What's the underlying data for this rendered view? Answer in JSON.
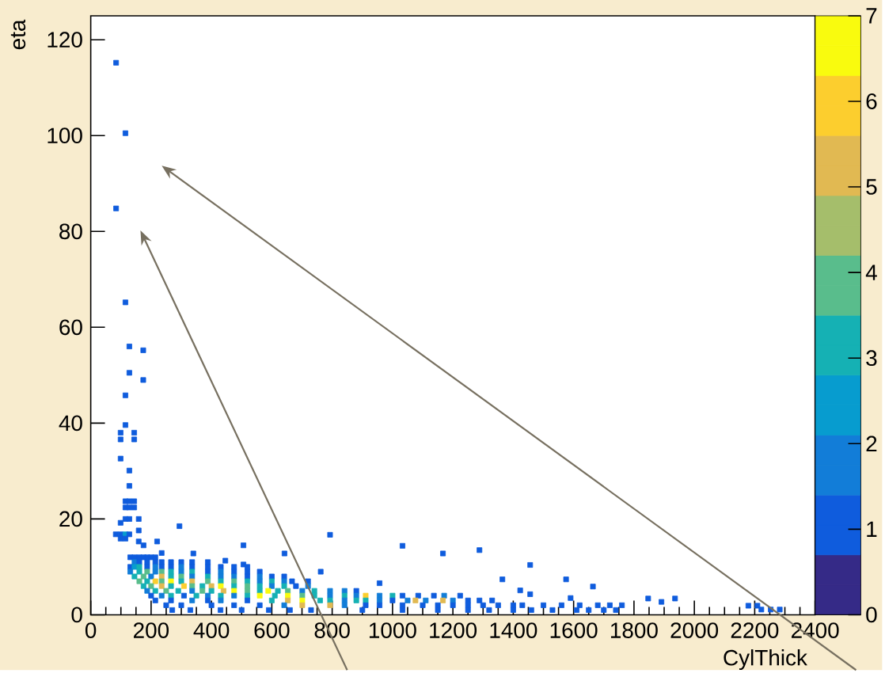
{
  "chart_data": {
    "type": "scatter",
    "xlabel": "CylThick",
    "ylabel": "eta",
    "xlim": [
      0,
      2400
    ],
    "xticks": [
      0,
      200,
      400,
      600,
      800,
      1000,
      1200,
      1400,
      1600,
      1800,
      2000,
      2200,
      2400
    ],
    "ylim": [
      0,
      125
    ],
    "yticks": [
      0,
      20,
      40,
      60,
      80,
      100,
      120
    ],
    "clim": [
      0,
      7
    ],
    "cticks": [
      0,
      1,
      2,
      3,
      4,
      5,
      6,
      7
    ],
    "marker": "square",
    "x": [
      84,
      115,
      84,
      115,
      128,
      174,
      128,
      174,
      115,
      115,
      99,
      144,
      99,
      144,
      99,
      128,
      128,
      115,
      128,
      144,
      115,
      128,
      144,
      115,
      128,
      159,
      99,
      294,
      159,
      83,
      99,
      115,
      128,
      99,
      115,
      159,
      220,
      175,
      506,
      235,
      340,
      642,
      446,
      506,
      793,
      1033,
      1167,
      1288,
      762,
      1456,
      1364,
      957,
      1423,
      1456,
      1575,
      1664,
      1590,
      1847,
      1891,
      1936,
      2179,
      2209,
      2222,
      2253,
      2283,
      131,
      145,
      161,
      175,
      187,
      200,
      214,
      145,
      161,
      187,
      214,
      235,
      266,
      300,
      336,
      388,
      131,
      145,
      161,
      187,
      214,
      235,
      266,
      300,
      336,
      388,
      431,
      475,
      519,
      131,
      161,
      187,
      214,
      235,
      266,
      300,
      336,
      388,
      431,
      475,
      519,
      560,
      145,
      175,
      200,
      235,
      266,
      300,
      336,
      388,
      431,
      475,
      519,
      560,
      600,
      641,
      161,
      187,
      214,
      235,
      266,
      300,
      336,
      388,
      431,
      475,
      519,
      560,
      600,
      641,
      667,
      720,
      175,
      200,
      235,
      266,
      309,
      336,
      370,
      400,
      431,
      475,
      519,
      560,
      600,
      641,
      680,
      720,
      187,
      214,
      250,
      290,
      336,
      370,
      400,
      440,
      475,
      519,
      560,
      588,
      620,
      653,
      701,
      741,
      793,
      841,
      880,
      200,
      235,
      266,
      309,
      350,
      388,
      431,
      475,
      519,
      560,
      610,
      653,
      701,
      741,
      793,
      841,
      880,
      911,
      957,
      1000,
      1033,
      1085,
      1137,
      1171,
      1224,
      214,
      266,
      336,
      388,
      431,
      519,
      600,
      653,
      701,
      760,
      793,
      841,
      880,
      911,
      957,
      1000,
      1050,
      1076,
      1110,
      1167,
      1200,
      1250,
      1288,
      1330,
      250,
      300,
      400,
      475,
      560,
      641,
      701,
      793,
      841,
      911,
      957,
      1033,
      1100,
      1150,
      1200,
      1250,
      1300,
      1350,
      1400,
      1430,
      1500,
      1560,
      1620,
      1680,
      1720,
      1760,
      270,
      330,
      430,
      500,
      590,
      660,
      730,
      900,
      1033,
      1150,
      1250,
      1320,
      1400,
      1460,
      1530,
      1610,
      1650,
      1700,
      1740
    ],
    "values": [
      115.2,
      100.5,
      84.8,
      65.2,
      56,
      55.2,
      50.5,
      49,
      45.8,
      39.6,
      38,
      38,
      36.6,
      36.6,
      32.6,
      30.1,
      26.9,
      23.7,
      23.7,
      23.7,
      22.4,
      22.4,
      22.4,
      20,
      20,
      20,
      19.2,
      18.5,
      17.6,
      16.8,
      16.8,
      16.8,
      16.8,
      15.9,
      15.9,
      15.3,
      15.3,
      14.5,
      14.5,
      12.9,
      12.8,
      12.8,
      11.3,
      10.5,
      16.7,
      14.4,
      12.8,
      13.5,
      9,
      10.4,
      7.4,
      6.6,
      5.1,
      4.3,
      7.4,
      5.9,
      3.5,
      3.4,
      2.7,
      3.4,
      1.9,
      1.9,
      1.1,
      1.1,
      1.1,
      12,
      12,
      12,
      12,
      12,
      12,
      12,
      11,
      11,
      11,
      11,
      11,
      11,
      11,
      11,
      11,
      10,
      10,
      10,
      10,
      10,
      10,
      10,
      10,
      10,
      10,
      10,
      10,
      10,
      9,
      9,
      9,
      9,
      9,
      9,
      9,
      9,
      9,
      9,
      9,
      9,
      9,
      8,
      8,
      8,
      8,
      8,
      8,
      8,
      8,
      8,
      8,
      8,
      8,
      8,
      8,
      7,
      7,
      7,
      7,
      7,
      7,
      7,
      7,
      7,
      7,
      7,
      7,
      7,
      7,
      7,
      7,
      6,
      6,
      6,
      6,
      6,
      6,
      6,
      6,
      6,
      6,
      6,
      6,
      6,
      6,
      6,
      6,
      5,
      5,
      5,
      5,
      5,
      5,
      5,
      5,
      5,
      5,
      5,
      5,
      5,
      5,
      5,
      5,
      5,
      5,
      5,
      4,
      4,
      4,
      4,
      4,
      4,
      4,
      4,
      4,
      4,
      4,
      4,
      4,
      4,
      4,
      4,
      4,
      4,
      4,
      4,
      4,
      4,
      4,
      4,
      4,
      3,
      3,
      3,
      3,
      3,
      3,
      3,
      3,
      3,
      3,
      3,
      3,
      3,
      3,
      3,
      3,
      3,
      3,
      3,
      3,
      3,
      3,
      3,
      3,
      2,
      2,
      2,
      2,
      2,
      2,
      2,
      2,
      2,
      2,
      2,
      2,
      2,
      2,
      2,
      2,
      2,
      2,
      2,
      2,
      2,
      2,
      2,
      2,
      2,
      2,
      1,
      1,
      1,
      1,
      1,
      1,
      1,
      1,
      1,
      1,
      1,
      1,
      1,
      1,
      1,
      1,
      1,
      1,
      1
    ],
    "cvalues": [
      1,
      1,
      1,
      1,
      1,
      1,
      1,
      1,
      1,
      1,
      1,
      1,
      1,
      1,
      1,
      1,
      1,
      1,
      1,
      1,
      1,
      1,
      1,
      1,
      1,
      1,
      1,
      1,
      1,
      1,
      1,
      2.5,
      1,
      1,
      1,
      1,
      1,
      1,
      1,
      1,
      1,
      1,
      1,
      1,
      1,
      1,
      1,
      1,
      1,
      1,
      1,
      1,
      1,
      1,
      1,
      1,
      1,
      1,
      1,
      1,
      1,
      1,
      1,
      1,
      1,
      1,
      1,
      1,
      1,
      1,
      1,
      1,
      2,
      1,
      1,
      1,
      1,
      1,
      1,
      1,
      1,
      1,
      2.5,
      3,
      1,
      2,
      1,
      1,
      2,
      1,
      1,
      1,
      1,
      1,
      2,
      3,
      3.5,
      2,
      4,
      3,
      2,
      3,
      1,
      2,
      1,
      1,
      1,
      3,
      4,
      2,
      5,
      3,
      4,
      2,
      3,
      2,
      2,
      1,
      2,
      1,
      1,
      4,
      3,
      6,
      4,
      7,
      3,
      5,
      4,
      3,
      4,
      3,
      2,
      3,
      2,
      1,
      1,
      3,
      4,
      5,
      3,
      6,
      4,
      3,
      5,
      6.5,
      3,
      4,
      3,
      2,
      3,
      1,
      2,
      2,
      3,
      4,
      3,
      2,
      4,
      3,
      5,
      7,
      4,
      3,
      6.5,
      3,
      4,
      2,
      3,
      2,
      2,
      1,
      1,
      2,
      3,
      1,
      3,
      2,
      3,
      2,
      3,
      6.5,
      3,
      6.5,
      4,
      3,
      2,
      3,
      2,
      6,
      2,
      3,
      1,
      1,
      1,
      2,
      1,
      1,
      1,
      2,
      1,
      2,
      1,
      3,
      5,
      6.5,
      3,
      3,
      2,
      3,
      3,
      2,
      1,
      2,
      5,
      2,
      5,
      2,
      1,
      1,
      1,
      1,
      1,
      1,
      1,
      1,
      2,
      5,
      5,
      2,
      1,
      1,
      1,
      1,
      1,
      1,
      1,
      1,
      1,
      1,
      1,
      1,
      1,
      1,
      1,
      1,
      1,
      1,
      1,
      1,
      1,
      1,
      1,
      1,
      1,
      1,
      1,
      1,
      1,
      1,
      1,
      1,
      1,
      1,
      1,
      1
    ]
  }
}
